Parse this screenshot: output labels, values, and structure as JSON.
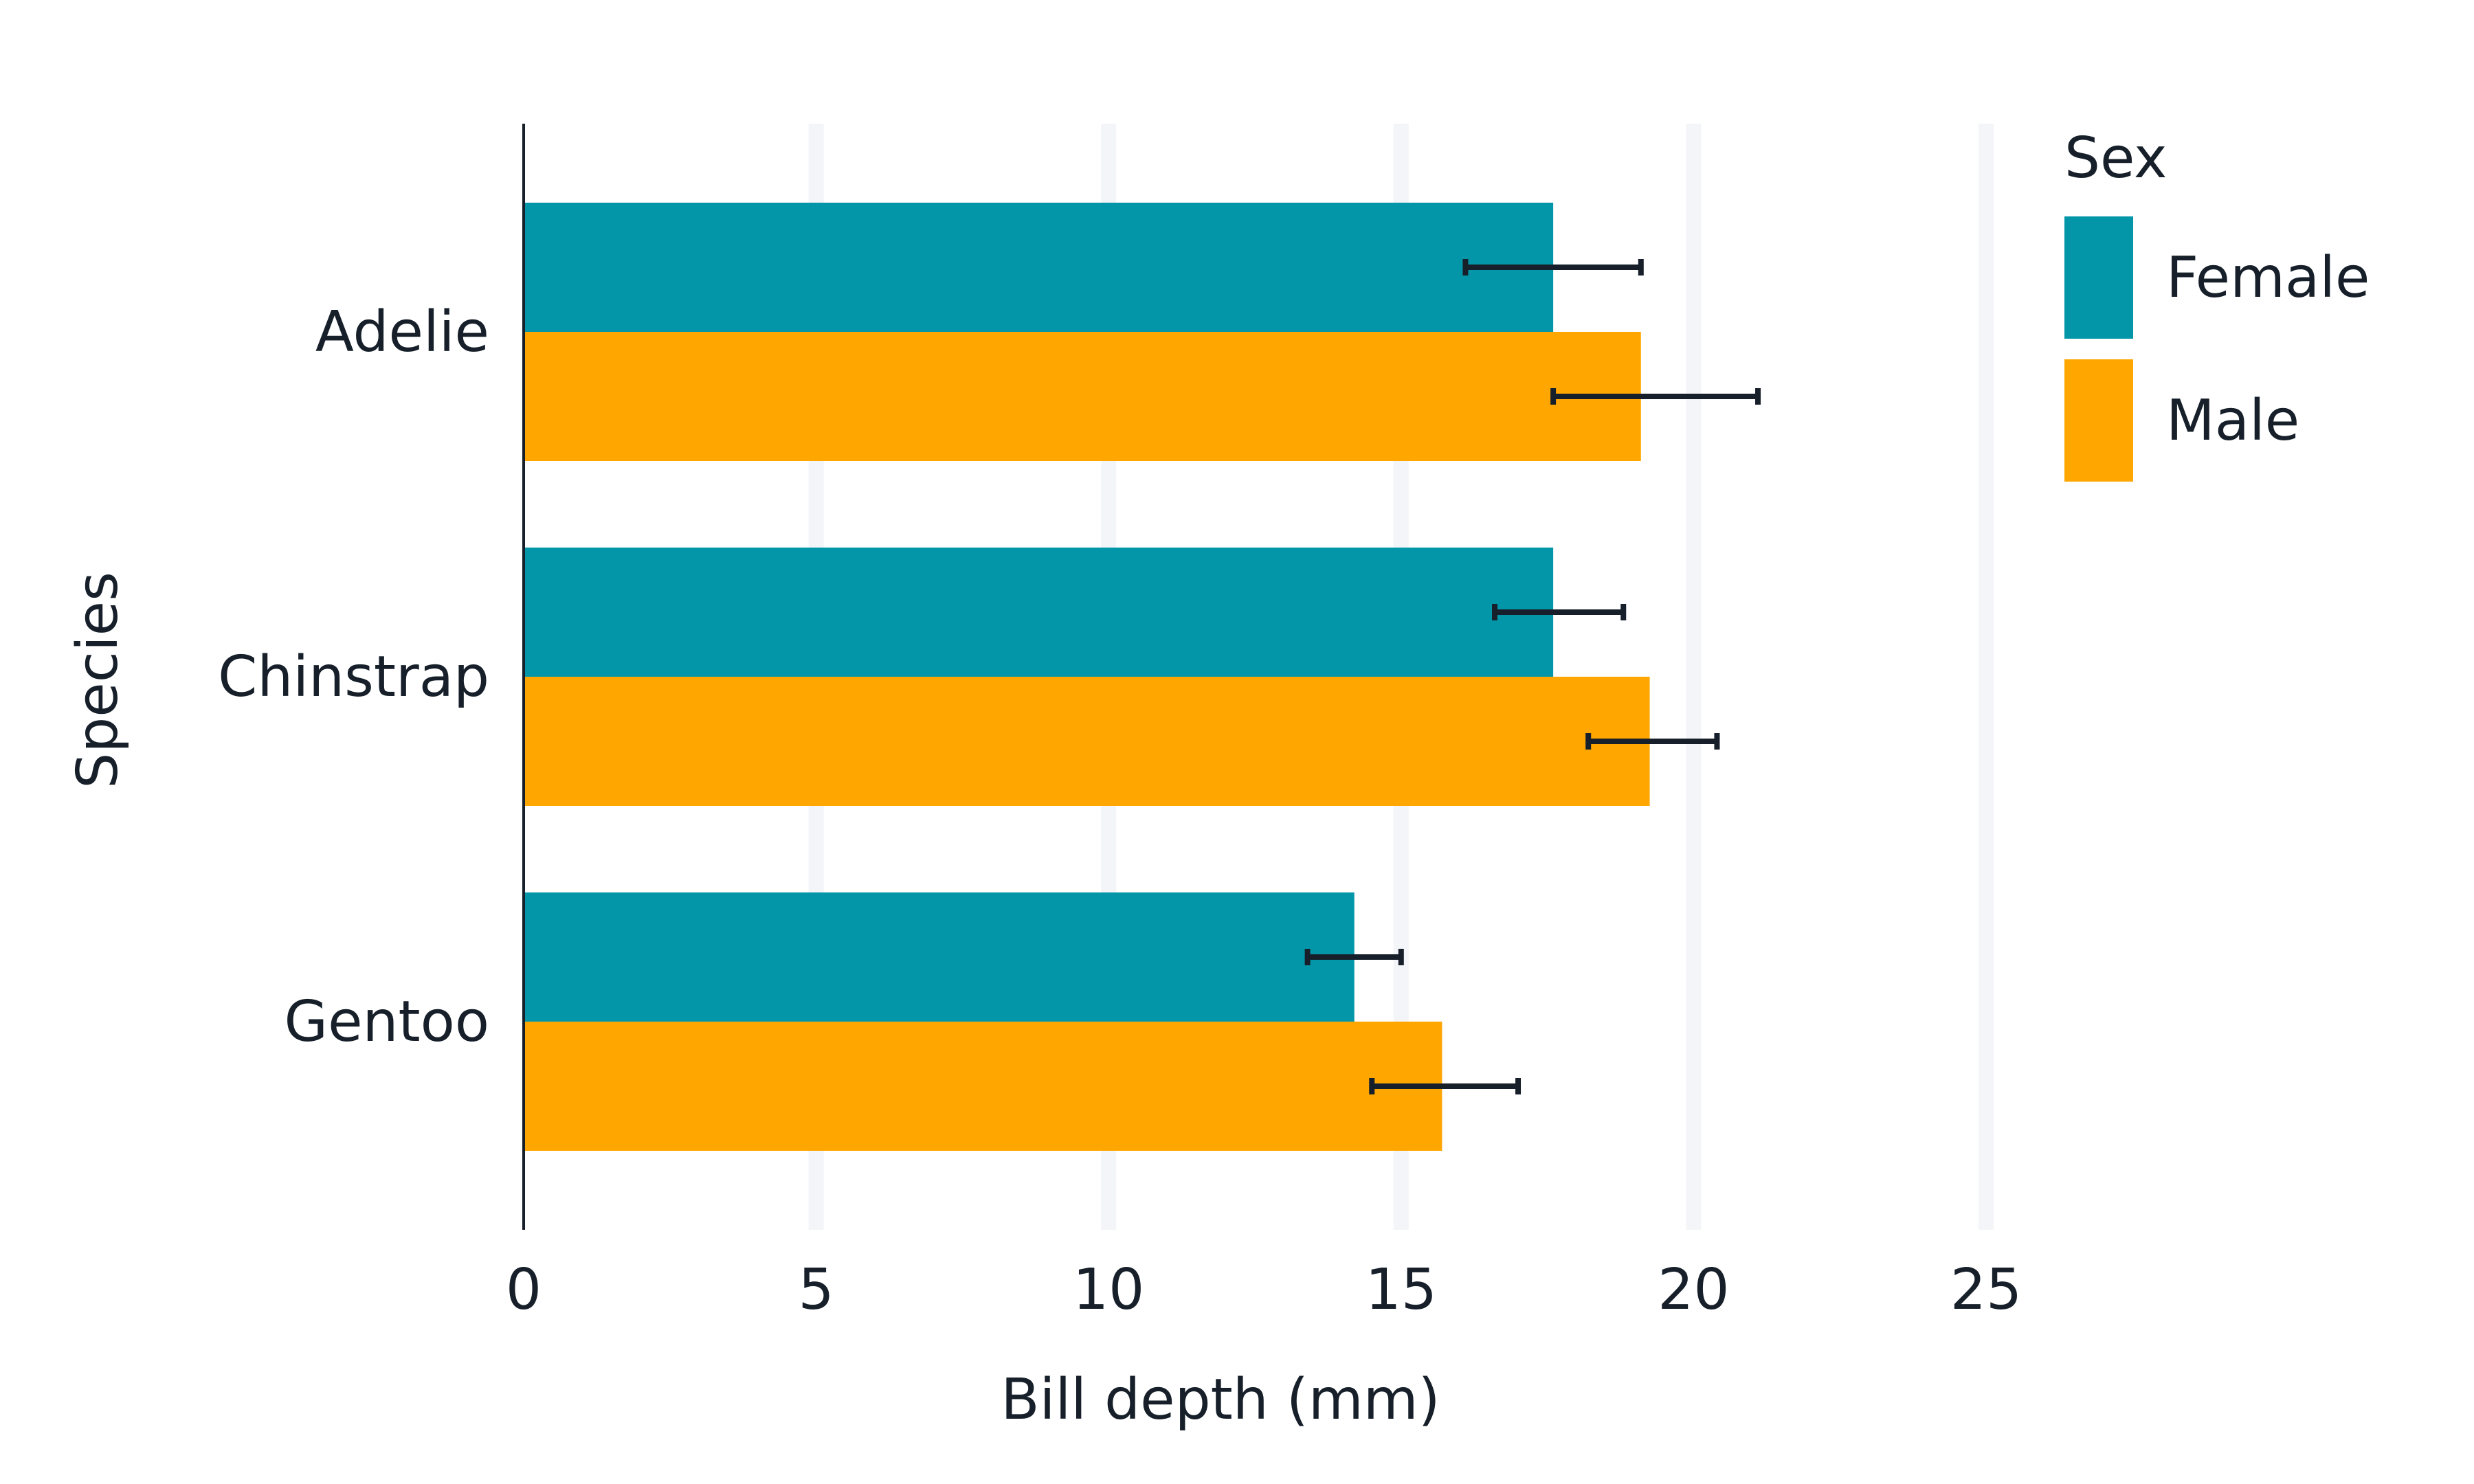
{
  "chart_data": {
    "type": "bar",
    "orientation": "horizontal",
    "categories": [
      "Adelie",
      "Chinstrap",
      "Gentoo"
    ],
    "series": [
      {
        "name": "Female",
        "color": "#0396a9",
        "values": [
          17.6,
          17.6,
          14.2
        ],
        "error_low": [
          16.1,
          16.6,
          13.4
        ],
        "error_high": [
          19.1,
          18.8,
          15.0
        ]
      },
      {
        "name": "Male",
        "color": "#ffa600",
        "values": [
          19.1,
          19.25,
          15.7
        ],
        "error_low": [
          17.6,
          18.2,
          14.5
        ],
        "error_high": [
          21.1,
          20.4,
          17.0
        ]
      }
    ],
    "xlabel": "Bill depth (mm)",
    "ylabel": "Species",
    "xlim": [
      0,
      25
    ],
    "xticks": [
      0,
      5,
      10,
      15,
      20,
      25
    ],
    "grid": "vertical",
    "legend": {
      "title": "Sex",
      "placement": "top-right"
    }
  }
}
